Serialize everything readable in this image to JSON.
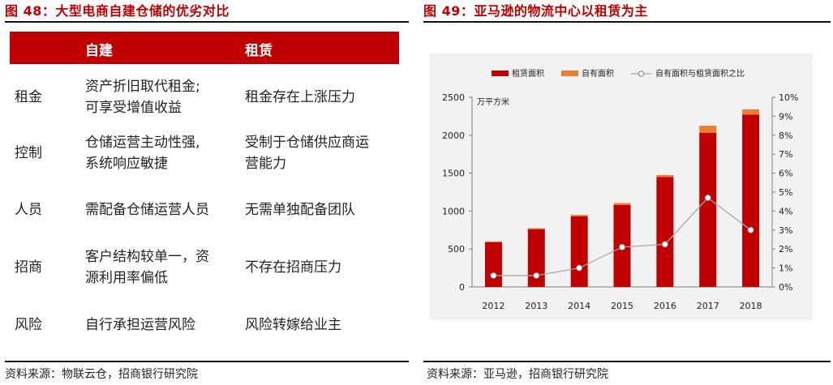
{
  "left_panel": {
    "title": "图 48：大型电商自建仓储的优劣对比",
    "header": [
      "",
      "自建",
      "租赁"
    ],
    "rows": [
      {
        "label": "租金",
        "self_build": [
          "资产折旧取代租金;",
          "可享受增值收益"
        ],
        "lease": [
          "租金存在上涨压力"
        ]
      },
      {
        "label": "控制",
        "self_build": [
          "仓储运营主动性强,",
          "系统响应敏捷"
        ],
        "lease": [
          "受制于仓储供应商运",
          "营能力"
        ]
      },
      {
        "label": "人员",
        "self_build": [
          "需配备仓储运营人员"
        ],
        "lease": [
          "无需单独配备团队"
        ]
      },
      {
        "label": "招商",
        "self_build": [
          "客户结构较单一，资",
          "源利用率偏低"
        ],
        "lease": [
          "不存在招商压力"
        ]
      },
      {
        "label": "风险",
        "self_build": [
          "自行承担运营风险"
        ],
        "lease": [
          "风险转嫁给业主"
        ]
      }
    ],
    "source": "资料来源：物联云仓，招商银行研究院"
  },
  "right_panel": {
    "title": "图 49：亚马逊的物流中心以租赁为主",
    "source": "资料来源：亚马逊，招商银行研究院"
  },
  "chart_data": {
    "type": "bar",
    "categories": [
      "2012",
      "2013",
      "2014",
      "2015",
      "2016",
      "2017",
      "2018"
    ],
    "series": [
      {
        "name": "租赁面积",
        "kind": "stacked-bar",
        "axis": "left",
        "color": "#c00000",
        "values": [
          590,
          760,
          930,
          1080,
          1450,
          2030,
          2270
        ]
      },
      {
        "name": "自有面积",
        "kind": "stacked-bar",
        "axis": "left",
        "color": "#ed7d31",
        "values": [
          10,
          15,
          20,
          25,
          25,
          95,
          70
        ]
      },
      {
        "name": "自有面积与租赁面积之比",
        "kind": "line",
        "axis": "right",
        "color": "#a6a6a6",
        "values": [
          0.6,
          0.6,
          1.0,
          2.1,
          2.25,
          4.7,
          3.0
        ]
      }
    ],
    "unit_label": "万平方米",
    "y_left": {
      "min": 0,
      "max": 2500,
      "ticks": [
        "0",
        "500",
        "1000",
        "1500",
        "2000",
        "2500"
      ]
    },
    "y_right": {
      "min": 0,
      "max": 10,
      "ticks": [
        "0%",
        "1%",
        "2%",
        "3%",
        "4%",
        "5%",
        "6%",
        "7%",
        "8%",
        "9%",
        "10%"
      ]
    },
    "legend_position": "top",
    "grid": false
  }
}
